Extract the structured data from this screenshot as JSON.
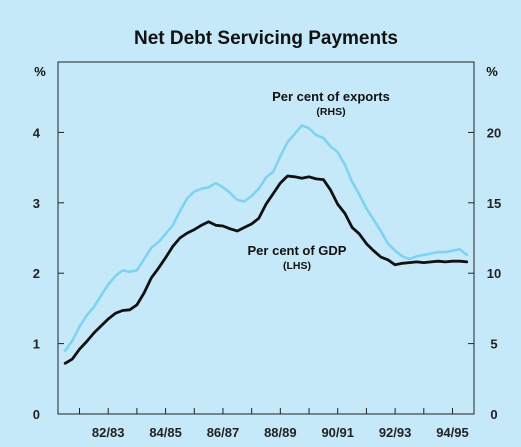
{
  "chart_data": {
    "type": "line",
    "title": "Net Debt Servicing Payments",
    "left_axis": {
      "unit": "%",
      "ylim": [
        0,
        5
      ],
      "ticks": [
        0,
        1,
        2,
        3,
        4
      ]
    },
    "right_axis": {
      "unit": "%",
      "ylim": [
        0,
        25
      ],
      "ticks": [
        0,
        5,
        10,
        15,
        20
      ]
    },
    "x_ticks": [
      "82/83",
      "84/85",
      "86/87",
      "88/89",
      "90/91",
      "92/93",
      "94/95"
    ],
    "x_tick_positions": [
      1983.0,
      1985.0,
      1987.0,
      1989.0,
      1991.0,
      1993.0,
      1995.0
    ],
    "xlim": [
      1981.25,
      1995.75
    ],
    "series": [
      {
        "name": "Per cent of exports",
        "sub": "(RHS)",
        "axis": "right",
        "color": "#7fd3f2",
        "x": [
          1981.5,
          1981.75,
          1982.0,
          1982.25,
          1982.5,
          1982.75,
          1983.0,
          1983.25,
          1983.5,
          1983.75,
          1984.0,
          1984.25,
          1984.5,
          1984.75,
          1985.0,
          1985.25,
          1985.5,
          1985.75,
          1986.0,
          1986.25,
          1986.5,
          1986.75,
          1987.0,
          1987.25,
          1987.5,
          1987.75,
          1988.0,
          1988.25,
          1988.5,
          1988.75,
          1989.0,
          1989.25,
          1989.5,
          1989.75,
          1990.0,
          1990.25,
          1990.5,
          1990.75,
          1991.0,
          1991.25,
          1991.5,
          1991.75,
          1992.0,
          1992.25,
          1992.5,
          1992.75,
          1993.0,
          1993.25,
          1993.5,
          1993.75,
          1994.0,
          1994.25,
          1994.5,
          1994.75,
          1995.0,
          1995.25,
          1995.5
        ],
        "values": [
          4.5,
          5.2,
          6.2,
          7.0,
          7.6,
          8.4,
          9.2,
          9.8,
          10.2,
          10.1,
          10.2,
          11.0,
          11.8,
          12.2,
          12.8,
          13.4,
          14.4,
          15.3,
          15.8,
          16.0,
          16.1,
          16.4,
          16.1,
          15.7,
          15.2,
          15.1,
          15.5,
          16.0,
          16.8,
          17.2,
          18.3,
          19.3,
          19.9,
          20.5,
          20.3,
          19.8,
          19.6,
          19.0,
          18.6,
          17.7,
          16.5,
          15.6,
          14.6,
          13.8,
          13.0,
          12.1,
          11.6,
          11.2,
          11.0,
          11.2,
          11.3,
          11.4,
          11.5,
          11.5,
          11.6,
          11.7,
          11.3
        ]
      },
      {
        "name": "Per cent of GDP",
        "sub": "(LHS)",
        "axis": "left",
        "color": "#111111",
        "x": [
          1981.5,
          1981.75,
          1982.0,
          1982.25,
          1982.5,
          1982.75,
          1983.0,
          1983.25,
          1983.5,
          1983.75,
          1984.0,
          1984.25,
          1984.5,
          1984.75,
          1985.0,
          1985.25,
          1985.5,
          1985.75,
          1986.0,
          1986.25,
          1986.5,
          1986.75,
          1987.0,
          1987.25,
          1987.5,
          1987.75,
          1988.0,
          1988.25,
          1988.5,
          1988.75,
          1989.0,
          1989.25,
          1989.5,
          1989.75,
          1990.0,
          1990.25,
          1990.5,
          1990.75,
          1991.0,
          1991.25,
          1991.5,
          1991.75,
          1992.0,
          1992.25,
          1992.5,
          1992.75,
          1993.0,
          1993.25,
          1993.5,
          1993.75,
          1994.0,
          1994.25,
          1994.5,
          1994.75,
          1995.0,
          1995.25,
          1995.5
        ],
        "values": [
          0.72,
          0.78,
          0.92,
          1.03,
          1.15,
          1.25,
          1.35,
          1.43,
          1.47,
          1.48,
          1.55,
          1.72,
          1.93,
          2.07,
          2.22,
          2.38,
          2.5,
          2.57,
          2.62,
          2.68,
          2.73,
          2.68,
          2.67,
          2.63,
          2.6,
          2.65,
          2.7,
          2.78,
          2.98,
          3.13,
          3.28,
          3.38,
          3.37,
          3.35,
          3.37,
          3.34,
          3.33,
          3.18,
          2.98,
          2.85,
          2.65,
          2.56,
          2.42,
          2.32,
          2.23,
          2.19,
          2.12,
          2.14,
          2.15,
          2.16,
          2.15,
          2.16,
          2.17,
          2.16,
          2.17,
          2.17,
          2.16
        ]
      }
    ]
  }
}
